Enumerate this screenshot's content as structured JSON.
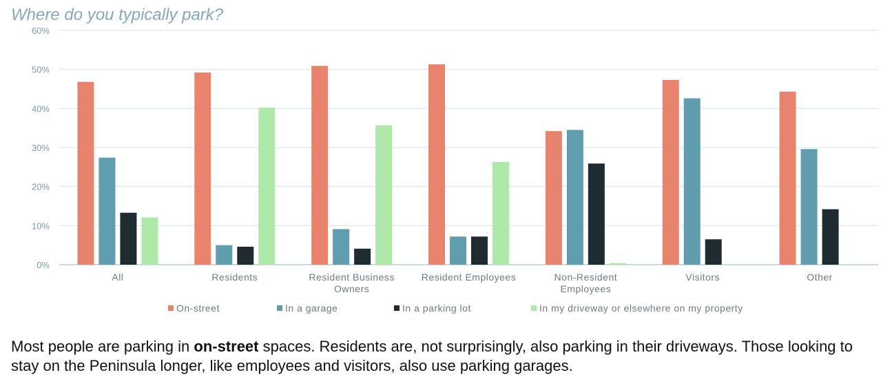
{
  "chart_data": {
    "type": "bar",
    "title": "Where do you typically park?",
    "categories": [
      "All",
      "Residents",
      "Resident Business Owners",
      "Resident Employees",
      "Non-Resident Employees",
      "Visitors",
      "Other"
    ],
    "category_lines": [
      [
        "All"
      ],
      [
        "Residents"
      ],
      [
        "Resident Business",
        "Owners"
      ],
      [
        "Resident Employees"
      ],
      [
        "Non-Resident",
        "Employees"
      ],
      [
        "Visitors"
      ],
      [
        "Other"
      ]
    ],
    "series": [
      {
        "name": "On-street",
        "color": "#e8836e",
        "values": [
          46.8,
          49.2,
          50.9,
          51.3,
          34.2,
          47.3,
          44.3
        ]
      },
      {
        "name": "In a garage",
        "color": "#5f9daf",
        "values": [
          27.4,
          5.0,
          9.1,
          7.2,
          34.5,
          42.6,
          29.6
        ]
      },
      {
        "name": "In a parking lot",
        "color": "#1e2b30",
        "values": [
          13.3,
          4.6,
          4.1,
          7.2,
          25.9,
          6.5,
          14.2
        ]
      },
      {
        "name": "In my driveway or elsewhere on my property",
        "color": "#aee9a9",
        "values": [
          12.1,
          40.2,
          35.7,
          26.3,
          0.4,
          null,
          null
        ]
      }
    ],
    "ylim": [
      0,
      60
    ],
    "yticks": [
      "0%",
      "10%",
      "20%",
      "30%",
      "40%",
      "50%",
      "60%"
    ],
    "grid": true,
    "legend_position": "bottom"
  },
  "caption": {
    "part1": "Most people are parking in ",
    "bold": "on-street",
    "part2": " spaces. Residents are, not surprisingly, also parking in their driveways. Those looking to stay on the Peninsula longer, like employees and visitors, also use parking garages."
  }
}
